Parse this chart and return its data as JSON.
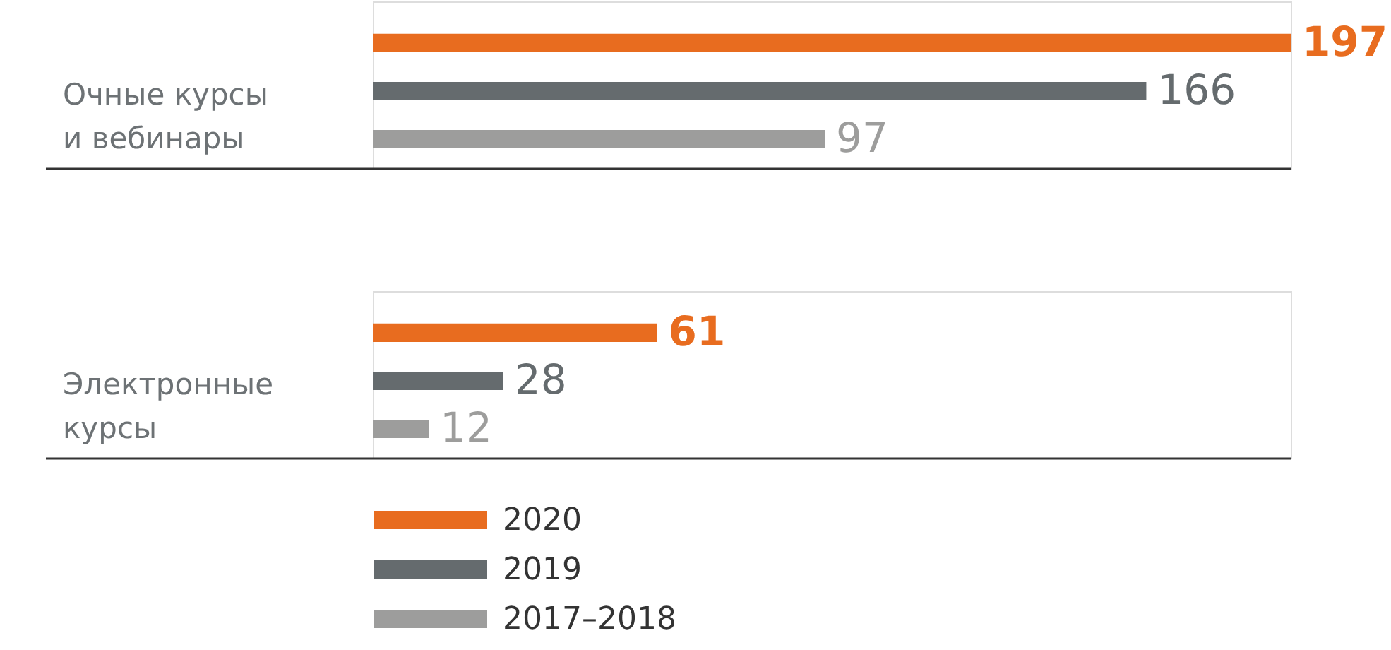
{
  "chart_data": [
    {
      "type": "bar",
      "orientation": "horizontal",
      "categories": [
        "Очные курсы\nи вебинары"
      ],
      "series": [
        {
          "name": "2020",
          "color": "#e86c1f",
          "values": [
            197
          ]
        },
        {
          "name": "2019",
          "color": "#656b6e",
          "values": [
            166
          ]
        },
        {
          "name": "2017–2018",
          "color": "#9d9d9c",
          "values": [
            97
          ]
        }
      ],
      "data_labels": true,
      "tick_labels": "y",
      "legend": "bottom"
    },
    {
      "type": "bar",
      "orientation": "horizontal",
      "categories": [
        "Электронные\nкурсы"
      ],
      "series": [
        {
          "name": "2020",
          "color": "#e86c1f",
          "values": [
            61
          ]
        },
        {
          "name": "2019",
          "color": "#656b6e",
          "values": [
            28
          ]
        },
        {
          "name": "2017–2018",
          "color": "#9d9d9c",
          "values": [
            12
          ]
        }
      ],
      "data_labels": true,
      "tick_labels": "y",
      "legend": "bottom"
    }
  ]
}
